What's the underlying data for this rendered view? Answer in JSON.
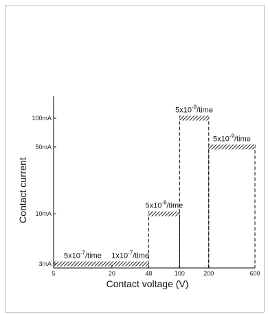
{
  "chart_data": {
    "type": "area",
    "xlabel": "Contact voltage (V)",
    "ylabel": "Contact current",
    "x_ticks": [
      "5",
      "20",
      "48",
      "100",
      "200",
      "600"
    ],
    "y_ticks": [
      "3mA",
      "10mA",
      "50mA",
      "100mA"
    ],
    "x_scale": "log",
    "y_scale": "log",
    "regions": [
      {
        "x_start": 5,
        "x_end": 20,
        "current": "3mA",
        "rate_mantissa": "5x10",
        "rate_exponent": "-7",
        "rate_unit": "/time"
      },
      {
        "x_start": 20,
        "x_end": 48,
        "current": "3mA",
        "rate_mantissa": "1x10",
        "rate_exponent": "-7",
        "rate_unit": "/time"
      },
      {
        "x_start": 48,
        "x_end": 100,
        "current": "10mA",
        "rate_mantissa": "5x10",
        "rate_exponent": "-8",
        "rate_unit": "/time"
      },
      {
        "x_start": 100,
        "x_end": 200,
        "current": "100mA",
        "rate_mantissa": "5x10",
        "rate_exponent": "-9",
        "rate_unit": "/time"
      },
      {
        "x_start": 200,
        "x_end": 600,
        "current": "50mA",
        "rate_mantissa": "5x10",
        "rate_exponent": "-9",
        "rate_unit": "/time"
      }
    ]
  }
}
